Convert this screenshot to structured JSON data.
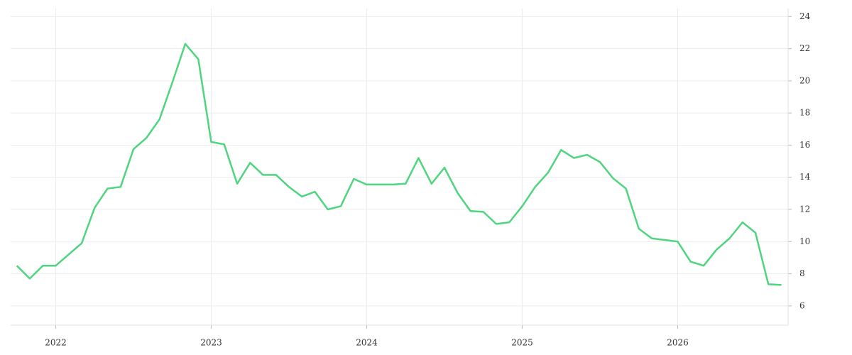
{
  "chart_data": {
    "type": "line",
    "x": [
      2021.75,
      2021.833,
      2021.917,
      2022,
      2022.083,
      2022.167,
      2022.25,
      2022.333,
      2022.417,
      2022.5,
      2022.583,
      2022.667,
      2022.75,
      2022.833,
      2022.917,
      2023,
      2023.083,
      2023.167,
      2023.25,
      2023.333,
      2023.417,
      2023.5,
      2023.583,
      2023.667,
      2023.75,
      2023.833,
      2023.917,
      2024,
      2024.083,
      2024.167,
      2024.25,
      2024.333,
      2024.417,
      2024.5,
      2024.583,
      2024.667,
      2024.75,
      2024.833,
      2024.917,
      2025,
      2025.083,
      2025.167,
      2025.25,
      2025.333,
      2025.417,
      2025.5,
      2025.583,
      2025.667,
      2025.75,
      2025.833,
      2025.917,
      2026,
      2026.083,
      2026.167,
      2026.25,
      2026.333,
      2026.417,
      2026.5,
      2026.583,
      2026.667
    ],
    "series": [
      {
        "color": "#4fd47f",
        "values": [
          8.5,
          7.7,
          8.5,
          8.5,
          9.2,
          9.9,
          12.1,
          13.3,
          13.4,
          15.75,
          16.45,
          17.6,
          19.9,
          22.3,
          21.35,
          16.2,
          16.05,
          13.6,
          14.9,
          14.15,
          14.15,
          13.4,
          12.8,
          13.1,
          12.0,
          12.2,
          13.9,
          13.55,
          13.55,
          13.55,
          13.6,
          15.2,
          13.6,
          14.6,
          13.05,
          11.9,
          11.85,
          11.1,
          11.2,
          12.2,
          13.4,
          14.3,
          15.7,
          15.2,
          15.4,
          14.95,
          13.95,
          13.3,
          10.8,
          10.2,
          10.1,
          10.0,
          8.75,
          8.5,
          9.5,
          10.2,
          11.2,
          10.55,
          7.35,
          7.3
        ]
      }
    ],
    "xlim": [
      2021.71,
      2026.71
    ],
    "xticks": [
      2022,
      2023,
      2024,
      2025,
      2026
    ],
    "ylim": [
      4.8,
      24.5
    ],
    "yticks": [
      6,
      8,
      10,
      12,
      14,
      16,
      18,
      20,
      22,
      24
    ],
    "grid": true,
    "y_axis_side": "right"
  }
}
